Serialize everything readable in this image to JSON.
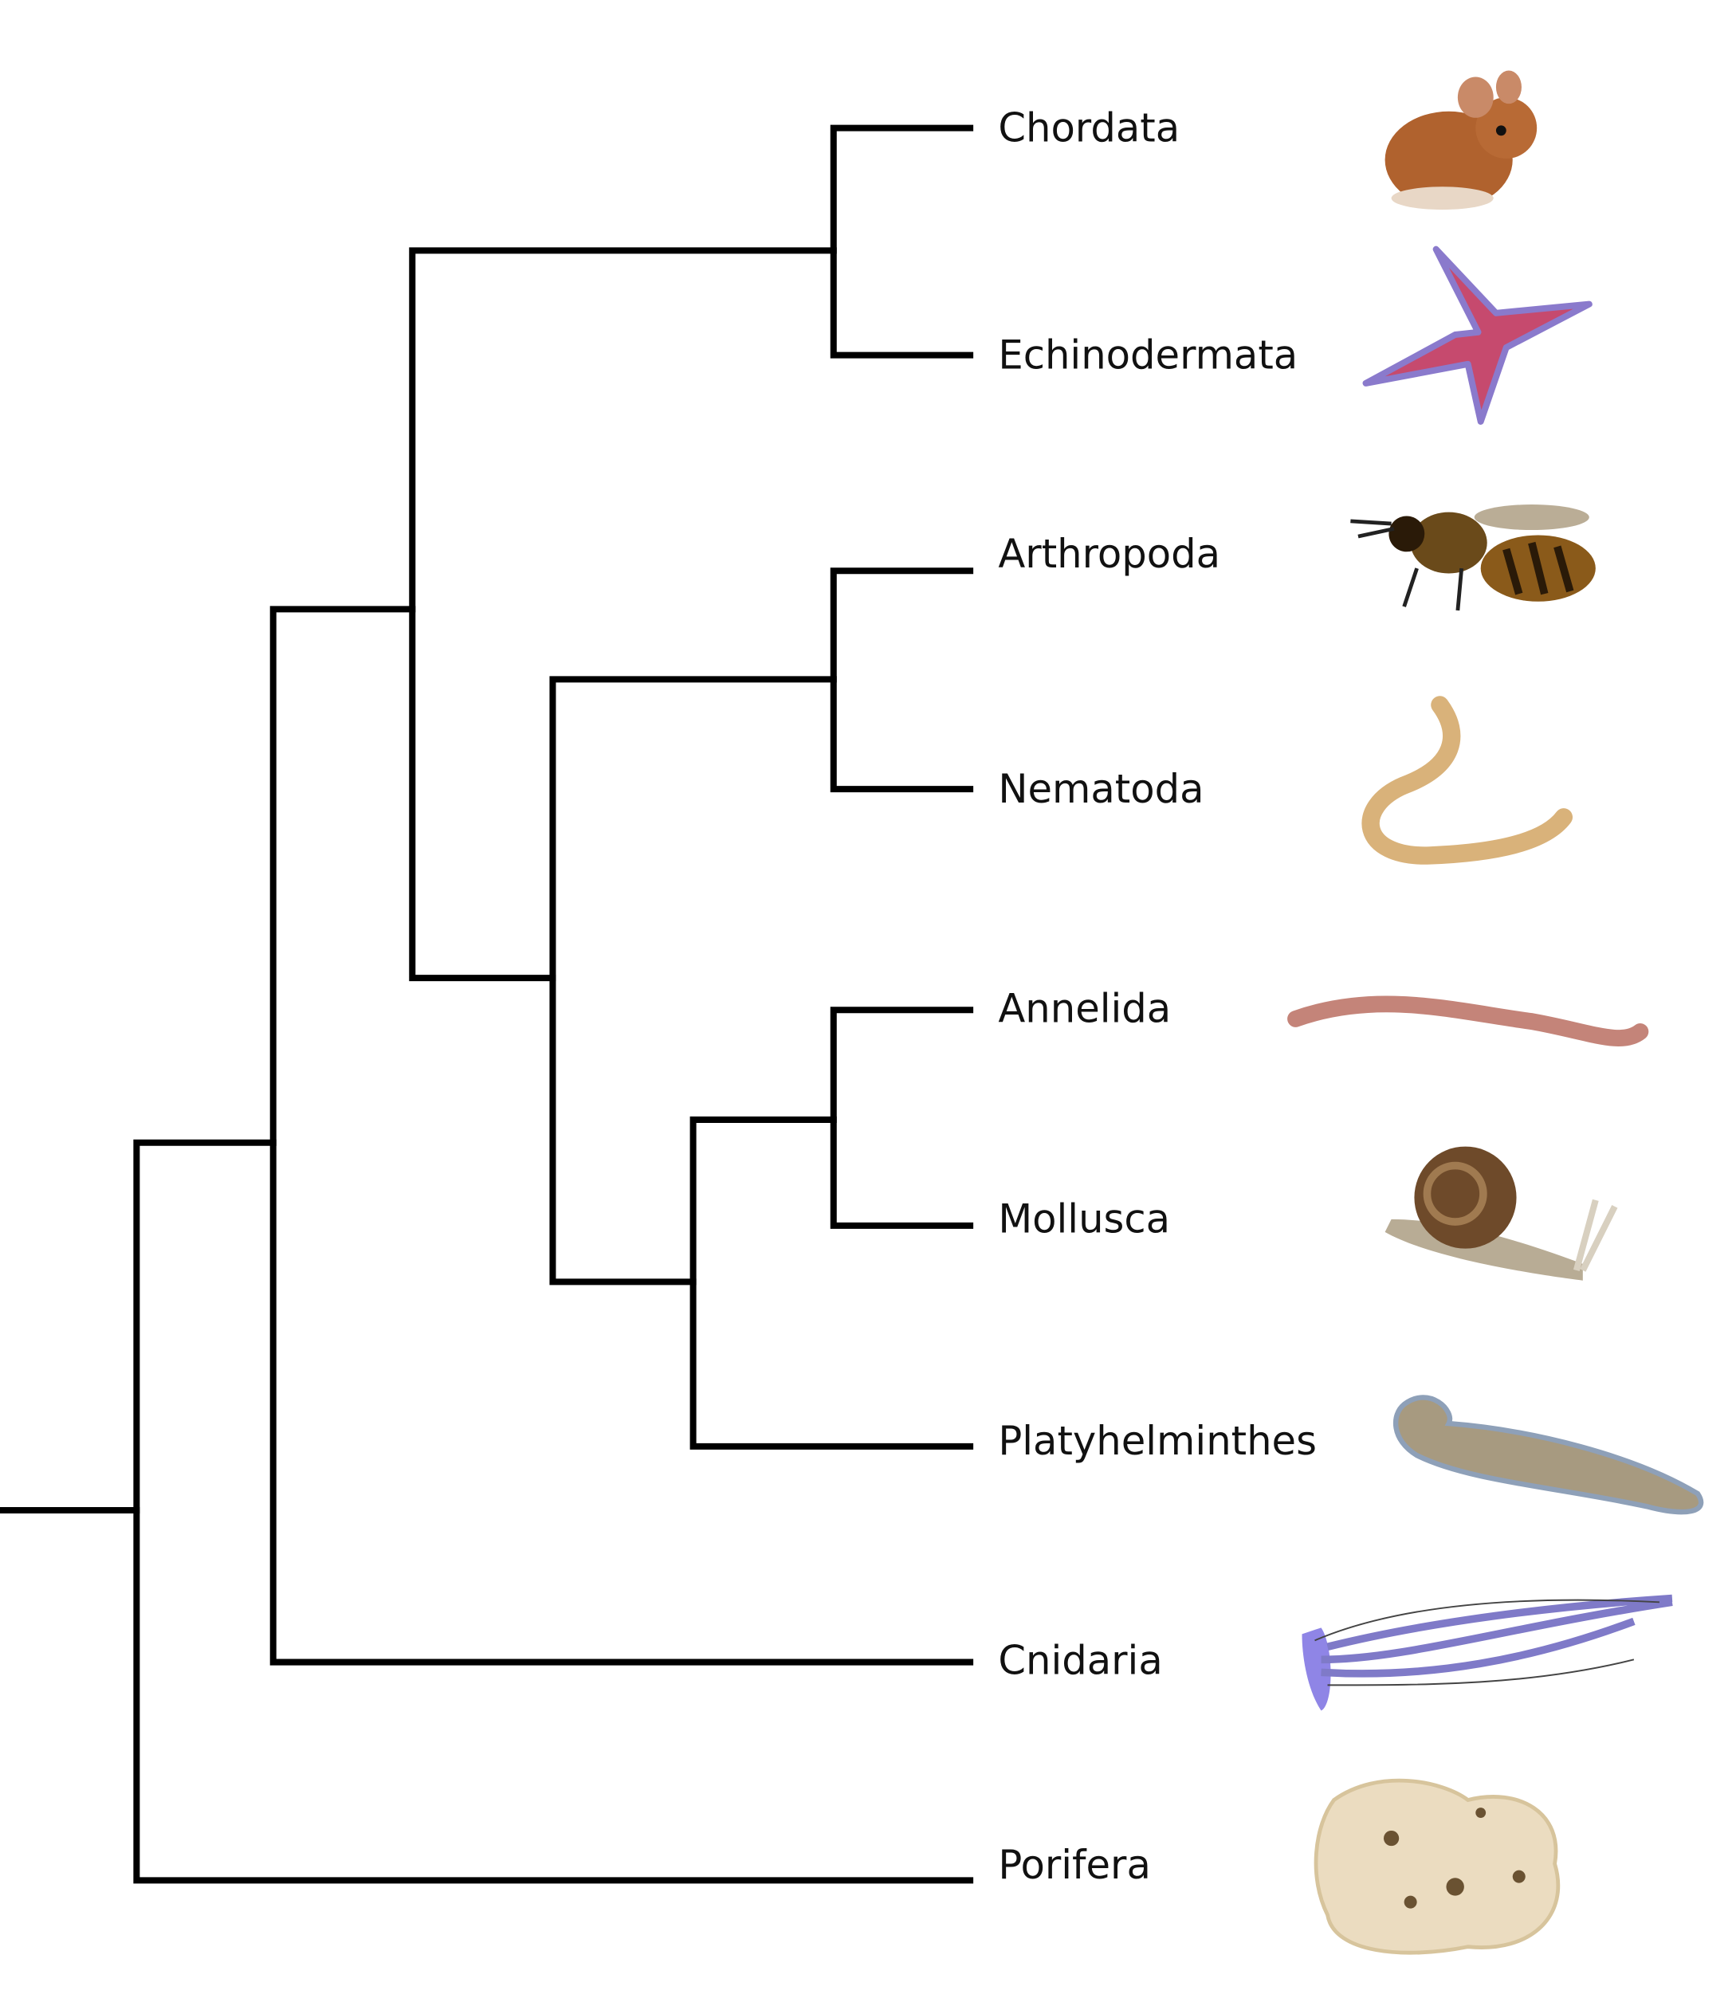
{
  "taxa": [
    "Chordata",
    "Echinodermata",
    "Arthropoda",
    "Nematoda",
    "Annelida",
    "Mollusca",
    "Platyhelminthes",
    "Cnidaria",
    "Porifera"
  ]
}
